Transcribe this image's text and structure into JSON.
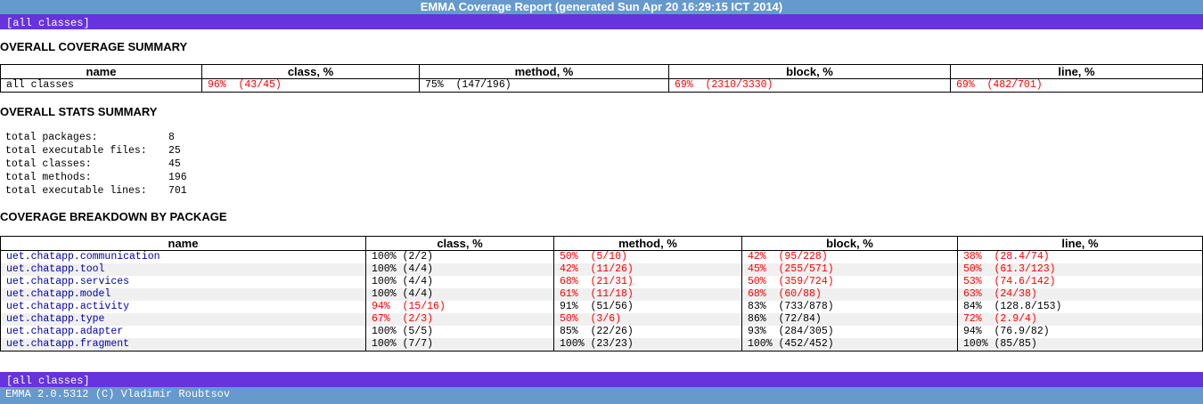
{
  "header": {
    "title": "EMMA Coverage Report (generated Sun Apr 20 16:29:15 ICT 2014)"
  },
  "nav": {
    "all_classes": "[all classes]"
  },
  "summary": {
    "heading": "OVERALL COVERAGE SUMMARY",
    "columns": [
      "name",
      "class, %",
      "method, %",
      "block, %",
      "line, %"
    ],
    "row": {
      "name": "all classes",
      "class": "96%  (43/45)",
      "method": "75%  (147/196)",
      "block": "69%  (2310/3330)",
      "line": "69%  (482/701)"
    }
  },
  "stats": {
    "heading": "OVERALL STATS SUMMARY",
    "items": [
      {
        "label": "total packages:",
        "value": "8"
      },
      {
        "label": "total executable files:",
        "value": "25"
      },
      {
        "label": "total classes:",
        "value": "45"
      },
      {
        "label": "total methods:",
        "value": "196"
      },
      {
        "label": "total executable lines:",
        "value": "701"
      }
    ]
  },
  "breakdown": {
    "heading": "COVERAGE BREAKDOWN BY PACKAGE",
    "columns": [
      "name",
      "class, %",
      "method, %",
      "block, %",
      "line, %"
    ],
    "rows": [
      {
        "name": "uet.chatapp.communication",
        "class": "100% (2/2)",
        "method": "50%  (5/10)",
        "block": "42%  (95/228)",
        "line": "38%  (28.4/74)"
      },
      {
        "name": "uet.chatapp.tool",
        "class": "100% (4/4)",
        "method": "42%  (11/26)",
        "block": "45%  (255/571)",
        "line": "50%  (61.3/123)"
      },
      {
        "name": "uet.chatapp.services",
        "class": "100% (4/4)",
        "method": "68%  (21/31)",
        "block": "50%  (359/724)",
        "line": "53%  (74.6/142)"
      },
      {
        "name": "uet.chatapp.model",
        "class": "100% (4/4)",
        "method": "61%  (11/18)",
        "block": "68%  (60/88)",
        "line": "63%  (24/38)"
      },
      {
        "name": "uet.chatapp.activity",
        "class": "94%  (15/16)",
        "method": "91%  (51/56)",
        "block": "83%  (733/878)",
        "line": "84%  (128.8/153)"
      },
      {
        "name": "uet.chatapp.type",
        "class": "67%  (2/3)",
        "method": "50%  (3/6)",
        "block": "86%  (72/84)",
        "line": "72%  (2.9/4)"
      },
      {
        "name": "uet.chatapp.adapter",
        "class": "100% (5/5)",
        "method": "85%  (22/26)",
        "block": "93%  (284/305)",
        "line": "94%  (76.9/82)"
      },
      {
        "name": "uet.chatapp.fragment",
        "class": "100% (7/7)",
        "method": "100% (23/23)",
        "block": "100% (452/452)",
        "line": "100% (85/85)"
      }
    ]
  },
  "footer": {
    "version": "EMMA 2.0.5312 (C) Vladimir Roubtsov"
  },
  "colors": {
    "title_bar": "#6699cc",
    "nav_bar": "#6633dd",
    "low_coverage": "#ff0000",
    "link": "#0000aa"
  }
}
